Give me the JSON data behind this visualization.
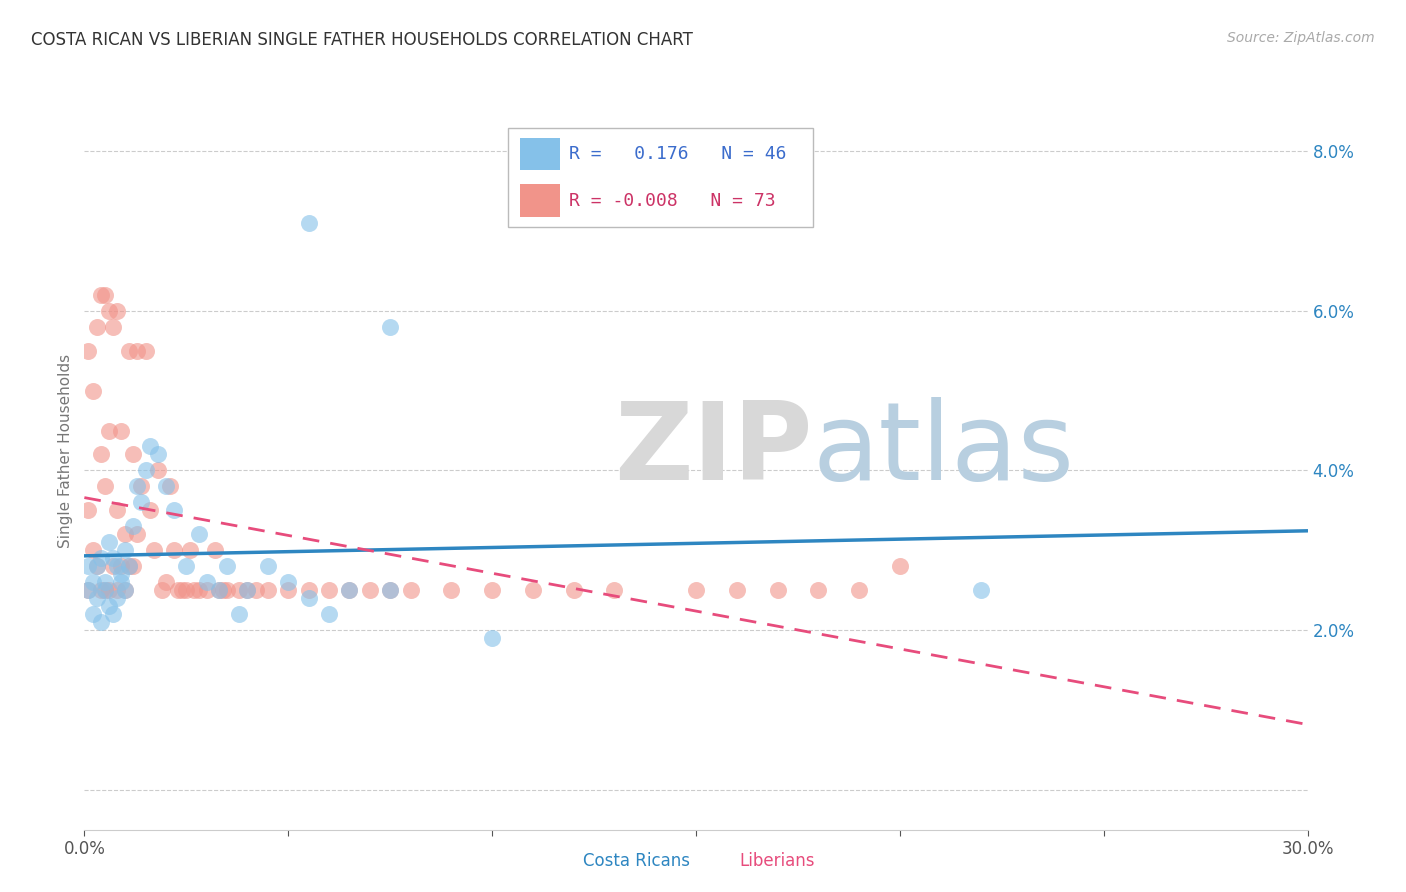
{
  "title": "COSTA RICAN VS LIBERIAN SINGLE FATHER HOUSEHOLDS CORRELATION CHART",
  "source": "Source: ZipAtlas.com",
  "ylabel": "Single Father Households",
  "xlim": [
    0.0,
    0.3
  ],
  "ylim": [
    -0.005,
    0.09
  ],
  "xticks": [
    0.0,
    0.05,
    0.1,
    0.15,
    0.2,
    0.25,
    0.3
  ],
  "yticks": [
    0.0,
    0.02,
    0.04,
    0.06,
    0.08
  ],
  "costa_rican_R": 0.176,
  "costa_rican_N": 46,
  "liberian_R": -0.008,
  "liberian_N": 73,
  "blue_color": "#85c1e9",
  "pink_color": "#f1948a",
  "blue_line_color": "#2e86c1",
  "pink_line_color": "#e74c7c",
  "costa_rican_x": [
    0.001,
    0.001,
    0.002,
    0.002,
    0.003,
    0.003,
    0.004,
    0.004,
    0.005,
    0.005,
    0.006,
    0.006,
    0.007,
    0.007,
    0.008,
    0.008,
    0.009,
    0.009,
    0.01,
    0.01,
    0.011,
    0.012,
    0.013,
    0.014,
    0.015,
    0.016,
    0.018,
    0.02,
    0.022,
    0.025,
    0.028,
    0.03,
    0.033,
    0.035,
    0.038,
    0.04,
    0.045,
    0.05,
    0.055,
    0.06,
    0.065,
    0.075,
    0.22,
    0.055,
    0.1,
    0.075
  ],
  "costa_rican_y": [
    0.028,
    0.025,
    0.022,
    0.026,
    0.024,
    0.028,
    0.021,
    0.029,
    0.025,
    0.026,
    0.023,
    0.031,
    0.022,
    0.029,
    0.024,
    0.028,
    0.026,
    0.027,
    0.025,
    0.03,
    0.028,
    0.033,
    0.038,
    0.036,
    0.04,
    0.043,
    0.042,
    0.038,
    0.035,
    0.028,
    0.032,
    0.026,
    0.025,
    0.028,
    0.022,
    0.025,
    0.028,
    0.026,
    0.024,
    0.022,
    0.025,
    0.025,
    0.025,
    0.071,
    0.019,
    0.058
  ],
  "liberian_x": [
    0.001,
    0.001,
    0.001,
    0.002,
    0.002,
    0.003,
    0.003,
    0.004,
    0.004,
    0.004,
    0.005,
    0.005,
    0.005,
    0.006,
    0.006,
    0.006,
    0.007,
    0.007,
    0.008,
    0.008,
    0.008,
    0.009,
    0.009,
    0.01,
    0.01,
    0.011,
    0.011,
    0.012,
    0.012,
    0.013,
    0.013,
    0.014,
    0.015,
    0.016,
    0.017,
    0.018,
    0.019,
    0.02,
    0.021,
    0.022,
    0.023,
    0.024,
    0.025,
    0.026,
    0.027,
    0.028,
    0.03,
    0.032,
    0.033,
    0.034,
    0.035,
    0.038,
    0.04,
    0.042,
    0.045,
    0.05,
    0.055,
    0.06,
    0.065,
    0.07,
    0.075,
    0.08,
    0.09,
    0.1,
    0.11,
    0.12,
    0.13,
    0.15,
    0.16,
    0.17,
    0.18,
    0.19,
    0.2
  ],
  "liberian_y": [
    0.025,
    0.035,
    0.055,
    0.03,
    0.05,
    0.028,
    0.058,
    0.025,
    0.042,
    0.062,
    0.025,
    0.038,
    0.062,
    0.025,
    0.045,
    0.06,
    0.028,
    0.058,
    0.025,
    0.035,
    0.06,
    0.028,
    0.045,
    0.025,
    0.032,
    0.028,
    0.055,
    0.028,
    0.042,
    0.032,
    0.055,
    0.038,
    0.055,
    0.035,
    0.03,
    0.04,
    0.025,
    0.026,
    0.038,
    0.03,
    0.025,
    0.025,
    0.025,
    0.03,
    0.025,
    0.025,
    0.025,
    0.03,
    0.025,
    0.025,
    0.025,
    0.025,
    0.025,
    0.025,
    0.025,
    0.025,
    0.025,
    0.025,
    0.025,
    0.025,
    0.025,
    0.025,
    0.025,
    0.025,
    0.025,
    0.025,
    0.025,
    0.025,
    0.025,
    0.025,
    0.025,
    0.025,
    0.028
  ]
}
